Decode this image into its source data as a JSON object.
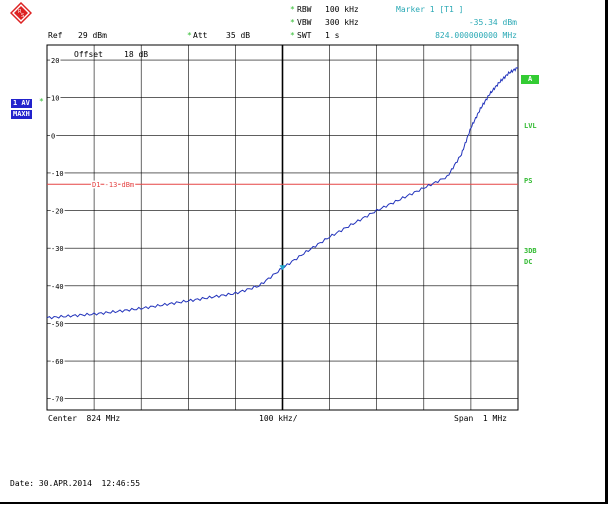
{
  "header": {
    "ref_label": "Ref",
    "ref_value": "29 dBm",
    "att_label": "Att",
    "att_value": "35 dB",
    "offset_label": "Offset",
    "offset_value": "18 dB",
    "rbw_label": "RBW",
    "rbw_value": "100 kHz",
    "vbw_label": "VBW",
    "vbw_value": "300 kHz",
    "swt_label": "SWT",
    "swt_value": "1 s",
    "marker_title": "Marker 1 [T1 ]",
    "marker_level": "-35.34 dBm",
    "marker_freq": "824.000000000 MHz"
  },
  "left_badges": {
    "trace_mode": "1 AV",
    "detector": "MAXH"
  },
  "right_labels": {
    "a": "A",
    "lvl": "LVL",
    "ps": "PS",
    "db3": "3DB",
    "dc": "DC"
  },
  "limit_line": {
    "label": "D1 -13 dBm",
    "level_dbm": -13,
    "color": "#e54545"
  },
  "footer": {
    "center": "Center  824 MHz",
    "div": "100 kHz/",
    "span": "Span  1 MHz",
    "date": "Date: 30.APR.2014  12:46:55"
  },
  "chart_data": {
    "type": "line",
    "ylabel": "",
    "xlabel": "",
    "ylim": [
      -73,
      24
    ],
    "y_ticks": [
      20,
      10,
      0,
      -10,
      -20,
      -30,
      -40,
      -50,
      -60,
      -70
    ],
    "x_divisions": 10,
    "grid": true,
    "series": [
      {
        "color": "#2233bb",
        "x": [
          0,
          0.5,
          1,
          1.5,
          2,
          2.5,
          3,
          3.5,
          4,
          4.5,
          5,
          5.5,
          6,
          6.5,
          7,
          7.5,
          8,
          8.5,
          8.8,
          9,
          9.2,
          9.4,
          9.6,
          9.8,
          10
        ],
        "values": [
          -48.5,
          -48,
          -47.5,
          -46.8,
          -46,
          -45,
          -44,
          -43,
          -42,
          -40,
          -35.3,
          -31,
          -27,
          -23.5,
          -20,
          -17,
          -14,
          -11,
          -5,
          2,
          7,
          11,
          14,
          16.5,
          18
        ]
      }
    ],
    "marker": {
      "x": 5,
      "y": -35.34,
      "color": "#22aacc"
    }
  }
}
